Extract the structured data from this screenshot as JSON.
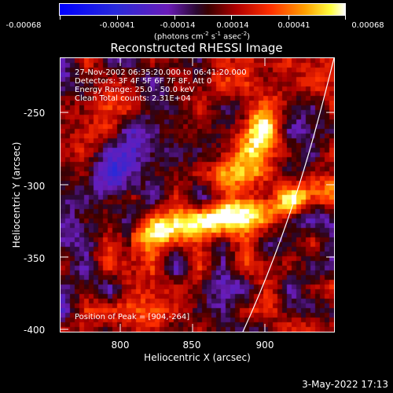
{
  "colorbar": {
    "tick_labels": [
      "-0.00068",
      "-0.00041",
      "-0.00014",
      "0.00014",
      "0.00041",
      "0.00068"
    ],
    "units_prefix": "(photons cm",
    "units_exp1": "-2",
    "units_mid": " s",
    "units_exp2": "-1",
    "units_mid2": " asec",
    "units_exp3": "-2",
    "units_suffix": ")"
  },
  "title": "Reconstructed RHESSI Image",
  "annotations": {
    "time_range": "27-Nov-2002 06:35:20.000 to 06:41:20.000",
    "detectors": "Detectors: 3F 4F 5F 6F 7F 8F, Att 0",
    "energy": "Energy Range: 25.0 - 50.0 keV",
    "clean": "Clean     Total counts: 2.31E+04",
    "peak": "Position of Peak = [904,-264]"
  },
  "axes": {
    "xlabel": "Heliocentric X (arcsec)",
    "ylabel": "Heliocentric Y (arcsec)",
    "xticks": [
      "800",
      "850",
      "900"
    ],
    "yticks": [
      "-250",
      "-300",
      "-350",
      "-400"
    ],
    "xlim": [
      760,
      950
    ],
    "ylim": [
      -403,
      -213
    ]
  },
  "datestamp": "3-May-2022 17:13",
  "colors": {
    "background": "#000000",
    "foreground": "#ffffff"
  }
}
